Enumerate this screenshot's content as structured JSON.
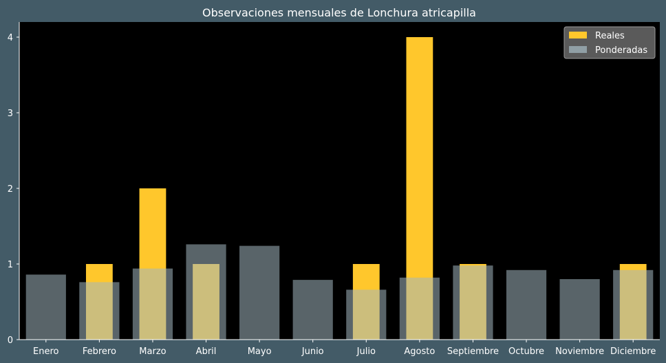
{
  "chart_data": {
    "type": "bar",
    "title": "Observaciones mensuales de Lonchura atricapilla",
    "xlabel": "",
    "ylabel": "",
    "categories": [
      "Enero",
      "Febrero",
      "Marzo",
      "Abril",
      "Mayo",
      "Junio",
      "Julio",
      "Agosto",
      "Septiembre",
      "Octubre",
      "Noviembre",
      "Diciembre"
    ],
    "series": [
      {
        "name": "Reales",
        "color": "#ffc72c",
        "values": [
          0,
          1,
          2,
          1,
          0,
          0,
          1,
          4,
          1,
          0,
          0,
          1
        ]
      },
      {
        "name": "Ponderadas",
        "color": "#a3b7bf",
        "values": [
          0.86,
          0.76,
          0.94,
          1.26,
          1.24,
          0.79,
          0.66,
          0.82,
          0.98,
          0.92,
          0.8,
          0.92
        ]
      }
    ],
    "ylim": [
      0,
      4.2
    ],
    "yticks": [
      0,
      1,
      2,
      3,
      4
    ],
    "grid": false,
    "legend_position": "top-right",
    "plot_background": "#000000",
    "figure_background": "#435b67"
  }
}
